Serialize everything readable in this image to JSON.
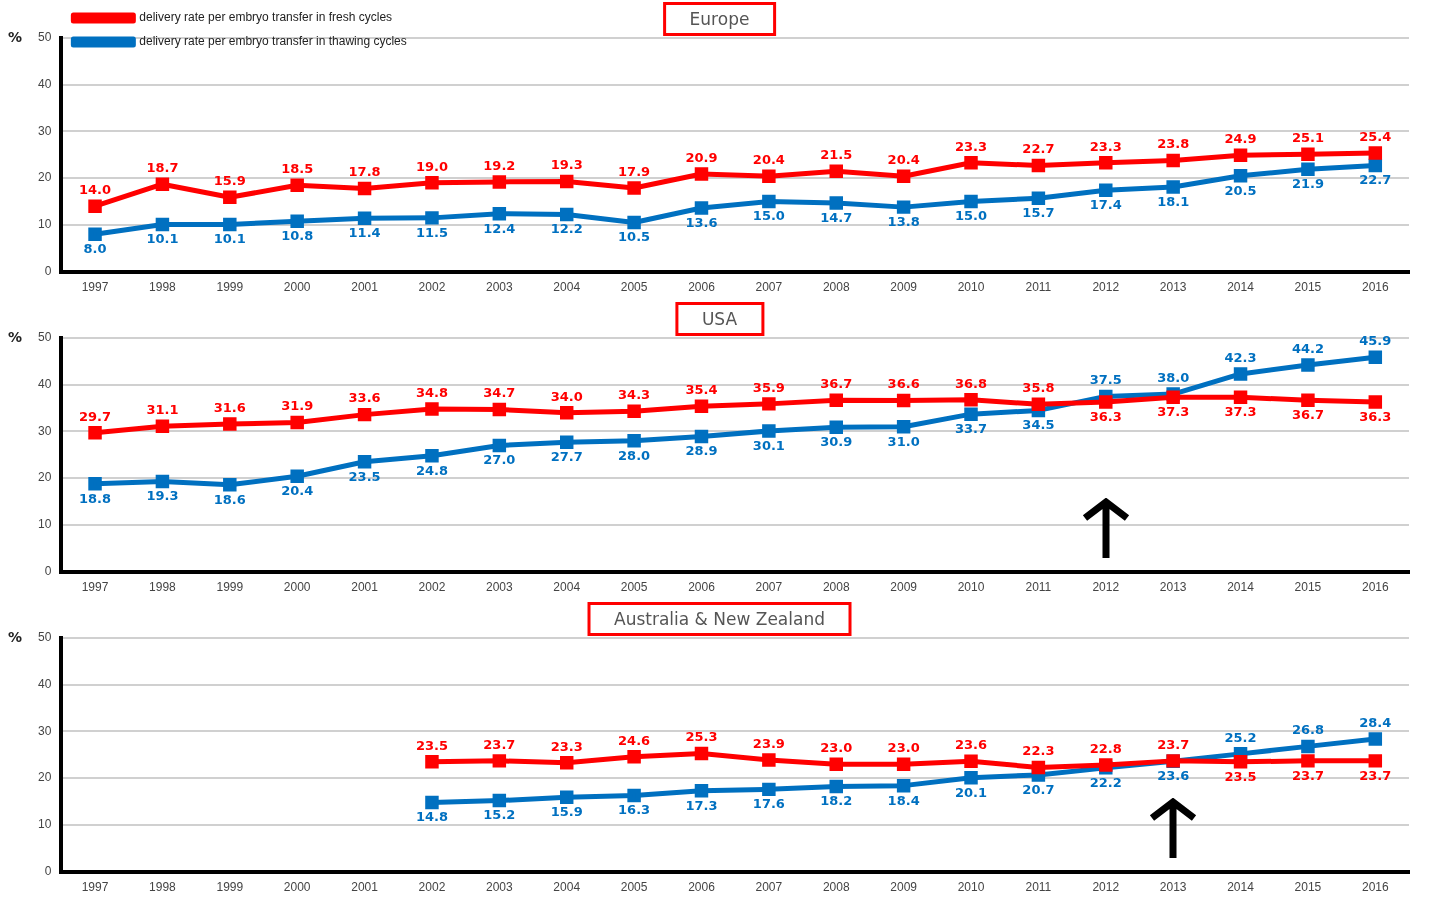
{
  "chart_data": [
    {
      "type": "line",
      "title": "Europe",
      "ylabel": "%",
      "categories": [
        "1997",
        "1998",
        "1999",
        "2000",
        "2001",
        "2002",
        "2003",
        "2004",
        "2005",
        "2006",
        "2007",
        "2008",
        "2009",
        "2010",
        "2011",
        "2012",
        "2013",
        "2014",
        "2015",
        "2016"
      ],
      "series": [
        {
          "name": "delivery rate per embryo transfer in fresh cycles",
          "color": "#ff0000",
          "values": [
            14.0,
            18.7,
            15.9,
            18.5,
            17.8,
            19.0,
            19.2,
            19.3,
            17.9,
            20.9,
            20.4,
            21.5,
            20.4,
            23.3,
            22.7,
            23.3,
            23.8,
            24.9,
            25.1,
            25.4
          ],
          "value_labels": [
            "14.0",
            "18.7",
            "15.9",
            "18.5",
            "17.8",
            "19.0",
            "19.2",
            "19.3",
            "17.9",
            "20.9",
            "20.4",
            "21.5",
            "20.4",
            "23.3",
            "22.7",
            "23.3",
            "23.8",
            "24.9",
            "25.1",
            "25.4"
          ]
        },
        {
          "name": "delivery rate per embryo transfer in thawing cycles",
          "color": "#0070c0",
          "values": [
            8.0,
            10.1,
            10.1,
            10.8,
            11.4,
            11.5,
            12.4,
            12.2,
            10.5,
            13.6,
            15.0,
            14.7,
            13.8,
            15.0,
            15.7,
            17.4,
            18.1,
            20.5,
            21.9,
            22.7
          ],
          "value_labels": [
            "8.0",
            "10.1",
            "10.1",
            "10.8",
            "11.4",
            "11.5",
            "12.4",
            "12.2",
            "10.5",
            "13.6",
            "15.0",
            "14.7",
            "13.8",
            "15.0",
            "15.7",
            "17.4",
            "18.1",
            "20.5",
            "21.9",
            "22.7"
          ]
        }
      ],
      "ylim": [
        0,
        50
      ],
      "yticks": [
        0,
        10,
        20,
        30,
        40,
        50
      ],
      "grid": "y",
      "legend": "top left",
      "marker": "square",
      "line_style": "solid"
    },
    {
      "type": "line",
      "title": "USA",
      "ylabel": "%",
      "categories": [
        "1997",
        "1998",
        "1999",
        "2000",
        "2001",
        "2002",
        "2003",
        "2004",
        "2005",
        "2006",
        "2007",
        "2008",
        "2009",
        "2010",
        "2011",
        "2012",
        "2013",
        "2014",
        "2015",
        "2016"
      ],
      "series": [
        {
          "color": "#ff0000",
          "values": [
            29.7,
            31.1,
            31.6,
            31.9,
            33.6,
            34.8,
            34.7,
            34.0,
            34.3,
            35.4,
            35.9,
            36.7,
            36.6,
            36.8,
            35.8,
            36.3,
            37.3,
            37.3,
            36.7,
            36.3
          ],
          "value_labels": [
            "29.7",
            "31.1",
            "31.6",
            "31.9",
            "33.6",
            "34.8",
            "34.7",
            "34.0",
            "34.3",
            "35.4",
            "35.9",
            "36.7",
            "36.6",
            "36.8",
            "35.8",
            "36.3",
            "37.3",
            "37.3",
            "36.7",
            "36.3"
          ]
        },
        {
          "color": "#0070c0",
          "values": [
            18.8,
            19.3,
            18.6,
            20.4,
            23.5,
            24.8,
            27.0,
            27.7,
            28.0,
            28.9,
            30.1,
            30.9,
            31.0,
            33.7,
            34.5,
            37.5,
            38.0,
            42.3,
            44.2,
            45.9
          ],
          "value_labels": [
            "18.8",
            "19.3",
            "18.6",
            "20.4",
            "23.5",
            "24.8",
            "27.0",
            "27.7",
            "28.0",
            "28.9",
            "30.1",
            "30.9",
            "31.0",
            "33.7",
            "34.5",
            "37.5",
            "38.0",
            "42.3",
            "44.2",
            "45.9"
          ]
        }
      ],
      "ylim": [
        0,
        50
      ],
      "yticks": [
        0,
        10,
        20,
        30,
        40,
        50
      ],
      "grid": "y",
      "legend": false,
      "marker": "square",
      "line_style": "solid"
    },
    {
      "type": "line",
      "title": "Australia & New Zealand",
      "ylabel": "%",
      "categories": [
        "1997",
        "1998",
        "1999",
        "2000",
        "2001",
        "2002",
        "2003",
        "2004",
        "2005",
        "2006",
        "2007",
        "2008",
        "2009",
        "2010",
        "2011",
        "2012",
        "2013",
        "2014",
        "2015",
        "2016"
      ],
      "series": [
        {
          "color": "#ff0000",
          "values": [
            null,
            null,
            null,
            null,
            null,
            23.5,
            23.7,
            23.3,
            24.6,
            25.3,
            23.9,
            23.0,
            23.0,
            23.6,
            22.3,
            22.8,
            23.7,
            23.5,
            23.7,
            23.7
          ],
          "value_labels": [
            null,
            null,
            null,
            null,
            null,
            "23.5",
            "23.7",
            "23.3",
            "24.6",
            "25.3",
            "23.9",
            "23.0",
            "23.0",
            "23.6",
            "22.3",
            "22.8",
            "23.7",
            "23.5",
            "23.7",
            "23.7"
          ]
        },
        {
          "color": "#0070c0",
          "values": [
            null,
            null,
            null,
            null,
            null,
            14.8,
            15.2,
            15.9,
            16.3,
            17.3,
            17.6,
            18.2,
            18.4,
            20.1,
            20.7,
            22.2,
            23.6,
            25.2,
            26.8,
            28.4
          ],
          "value_labels": [
            null,
            null,
            null,
            null,
            null,
            "14.8",
            "15.2",
            "15.9",
            "16.3",
            "17.3",
            "17.6",
            "18.2",
            "18.4",
            "20.1",
            "20.7",
            "22.2",
            "23.6",
            "25.2",
            "26.8",
            "28.4"
          ]
        }
      ],
      "ylim": [
        0,
        50
      ],
      "yticks": [
        0,
        10,
        20,
        30,
        40,
        50
      ],
      "grid": "y",
      "legend": false,
      "marker": "square",
      "line_style": "solid"
    }
  ]
}
